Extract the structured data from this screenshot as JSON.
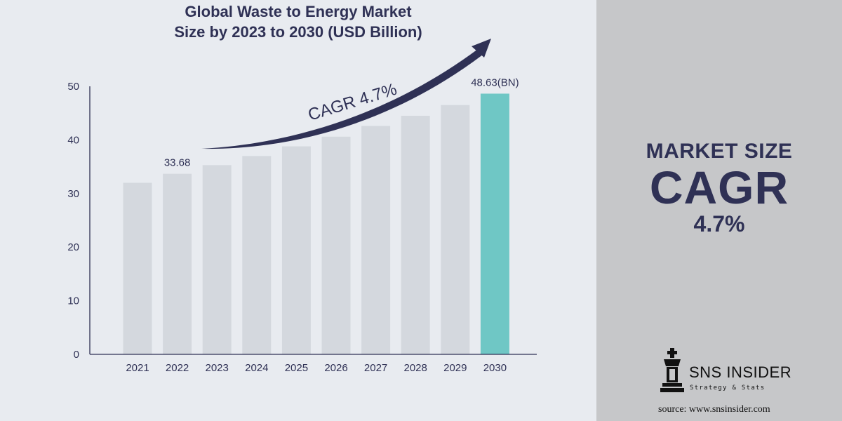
{
  "colors": {
    "bar": "#d4d8de",
    "highlight_bar": "#6fc7c5",
    "text": "#2f3155",
    "axis": "#2f3155",
    "right_panel": "#c6c7c9",
    "background": "#e8ebf0"
  },
  "chart_data": {
    "type": "bar",
    "title": "Global Waste to Energy Market Size by 2023 to 2030 (USD Billion)",
    "title_lines": [
      "Global Waste to Energy Market",
      "Size by 2023 to 2030 (USD Billion)"
    ],
    "xlabel": "",
    "ylabel": "",
    "categories": [
      "2021",
      "2022",
      "2023",
      "2024",
      "2025",
      "2026",
      "2027",
      "2028",
      "2029",
      "2030"
    ],
    "values": [
      32.0,
      33.68,
      35.3,
      37.0,
      38.8,
      40.6,
      42.6,
      44.5,
      46.5,
      48.63
    ],
    "highlight_index": 9,
    "ylim": [
      0,
      50
    ],
    "yticks": [
      0,
      10,
      20,
      30,
      40,
      50
    ],
    "data_labels": [
      {
        "category": "2022",
        "text": "33.68"
      },
      {
        "category": "2030",
        "text": "48.63(BN)"
      }
    ],
    "annotation": "CAGR  4.7%",
    "grid": false
  },
  "sidebar": {
    "kpi_title": "MARKET SIZE",
    "kpi_main": "CAGR",
    "kpi_value": "4.7%"
  },
  "brand": {
    "name": "SNS INSIDER",
    "tagline": "Strategy & Stats",
    "icon": "chess-king-icon"
  },
  "source": "source: www.snsinsider.com"
}
